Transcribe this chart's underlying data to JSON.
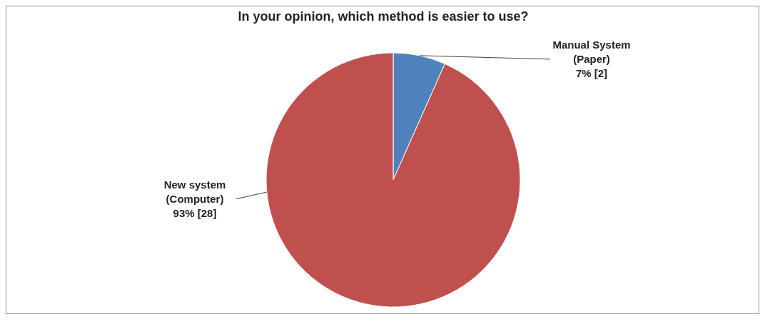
{
  "chart_data": {
    "type": "pie",
    "title": "In your opinion, which method is easier to use?",
    "categories": [
      "Manual System (Paper)",
      "New system (Computer)"
    ],
    "values": [
      2,
      28
    ],
    "colors": [
      "#4f81bd",
      "#c0504d"
    ],
    "value_labels": [
      "7%    [2]",
      "93%    [28]"
    ]
  }
}
